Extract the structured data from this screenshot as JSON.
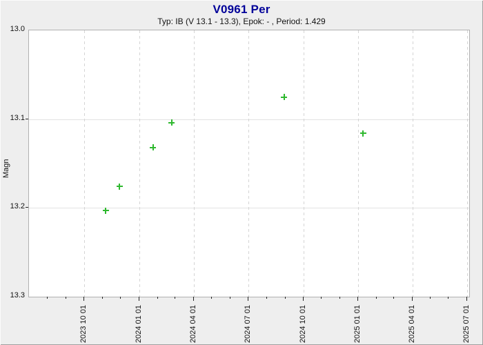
{
  "header": {
    "title": "V0961 Per",
    "subtitle": "Typ: IB (V 13.1 - 13.3), Epok: - , Period: 1.429"
  },
  "colors": {
    "title_text": "#000099",
    "subtitle_text": "#111111",
    "axis_text": "#111111",
    "tick": "#222222",
    "marker": "#2eb82e",
    "page_background": "#eeeeee",
    "plot_background": "#ffffff",
    "plot_border": "#b0b0b0",
    "grid_horizontal": "#e2e2e2",
    "grid_vertical_dashed": "#d4d4d4"
  },
  "chart_data": {
    "type": "scatter",
    "title": "V0961 Per",
    "subtitle": "Typ: IB (V 13.1 - 13.3), Epok: - , Period: 1.429",
    "xlabel": "",
    "ylabel": "Magn",
    "marker_style": "plus",
    "legend": null,
    "y_axis": {
      "min": 13.0,
      "max": 13.3,
      "inverted": true,
      "ticks": [
        {
          "value": 13.0,
          "label": "13.0",
          "gridline": false
        },
        {
          "value": 13.1,
          "label": "13.1",
          "gridline": true
        },
        {
          "value": 13.2,
          "label": "13.2",
          "gridline": true
        },
        {
          "value": 13.3,
          "label": "13.3",
          "gridline": false
        }
      ]
    },
    "x_axis": {
      "domain_start": "2023-07-01",
      "domain_end": "2025-07-05",
      "minor_tick_interval": "month",
      "major_ticks": [
        {
          "date": "2023-10-01",
          "label": "2023 10 01"
        },
        {
          "date": "2024-01-01",
          "label": "2024 01 01"
        },
        {
          "date": "2024-04-01",
          "label": "2024 04 01"
        },
        {
          "date": "2024-07-01",
          "label": "2024 07 01"
        },
        {
          "date": "2024-10-01",
          "label": "2024 10 01"
        },
        {
          "date": "2025-01-01",
          "label": "2025 01 01"
        },
        {
          "date": "2025-04-01",
          "label": "2025 04 01"
        },
        {
          "date": "2025-07-01",
          "label": "2025 07 01"
        }
      ]
    },
    "points": [
      {
        "date": "2023-11-06",
        "magn": 13.203
      },
      {
        "date": "2023-11-29",
        "magn": 13.176
      },
      {
        "date": "2024-01-24",
        "magn": 13.132
      },
      {
        "date": "2024-02-24",
        "magn": 13.104
      },
      {
        "date": "2024-08-30",
        "magn": 13.075
      },
      {
        "date": "2025-01-09",
        "magn": 13.116
      }
    ]
  }
}
